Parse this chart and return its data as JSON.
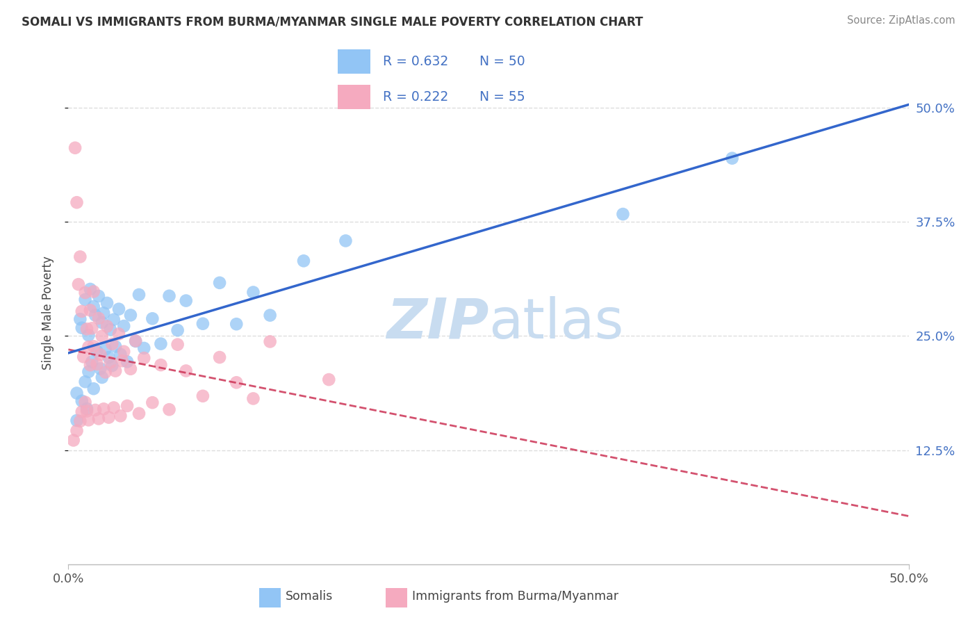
{
  "title": "SOMALI VS IMMIGRANTS FROM BURMA/MYANMAR SINGLE MALE POVERTY CORRELATION CHART",
  "source": "Source: ZipAtlas.com",
  "ylabel": "Single Male Poverty",
  "ytick_labels": [
    "12.5%",
    "25.0%",
    "37.5%",
    "50.0%"
  ],
  "ytick_values": [
    0.125,
    0.25,
    0.375,
    0.5
  ],
  "xlim": [
    0.0,
    0.5
  ],
  "ylim": [
    0.0,
    0.55
  ],
  "legend_label1": "Somalis",
  "legend_label2": "Immigrants from Burma/Myanmar",
  "R1": 0.632,
  "N1": 50,
  "R2": 0.222,
  "N2": 55,
  "color1": "#92C5F5",
  "color2": "#F5AABF",
  "line_color1": "#3366CC",
  "line_color2": "#CC3355",
  "watermark_color": "#C8DCF0",
  "background_color": "#FFFFFF",
  "grid_color": "#DDDDDD"
}
